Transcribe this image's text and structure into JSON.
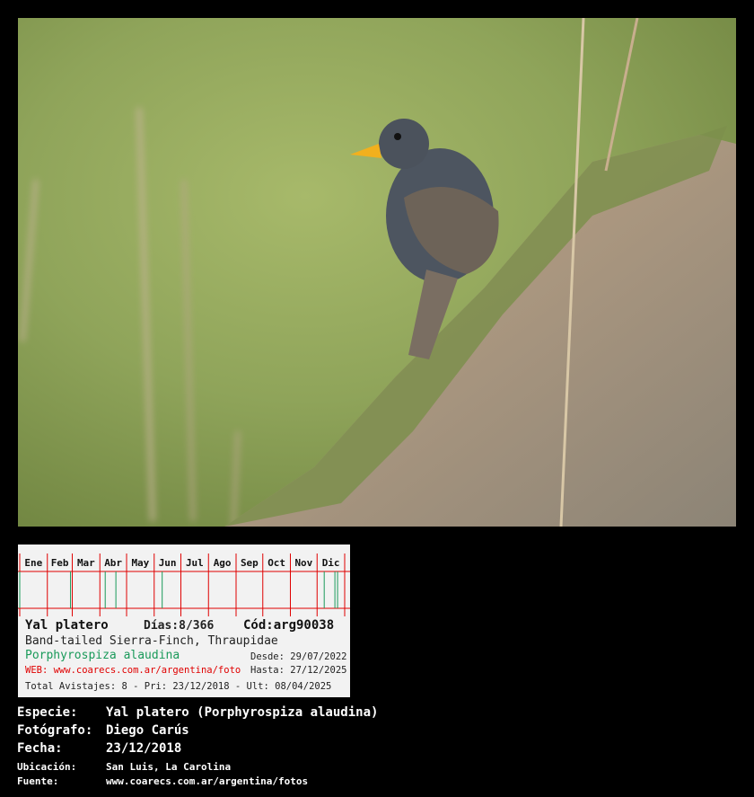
{
  "photo": {
    "subject": "Yal platero",
    "alt_icon": "bird-photo"
  },
  "calendar": {
    "months": [
      "Ene",
      "Feb",
      "Mar",
      "Abr",
      "May",
      "Jun",
      "Jul",
      "Ago",
      "Sep",
      "Oct",
      "Nov",
      "Dic"
    ],
    "sighting_days_of_year": [
      1,
      58,
      97,
      109,
      161,
      343,
      355,
      358
    ],
    "grid_color": "#e00000",
    "sighting_color": "#1a9a5a"
  },
  "card": {
    "common_name": "Yal platero",
    "code": "Cód:arg90038",
    "english_name": "Band-tailed Sierra-Finch, Thraupidae",
    "days": "Días:8/366",
    "scientific_name": "Porphyrospiza alaudina",
    "desde": "Desde: 29/07/2022",
    "web": "WEB: www.coarecs.com.ar/argentina/foto",
    "hasta": "Hasta: 27/12/2025",
    "totals": "Total Avistajes: 8 - Pri: 23/12/2018 - Ult: 08/04/2025"
  },
  "info": {
    "especie_label": "Especie:",
    "especie": "Yal platero (Porphyrospiza alaudina)",
    "fotografo_label": "Fotógrafo:",
    "fotografo": "Diego Carús",
    "fecha_label": "Fecha:",
    "fecha": "23/12/2018",
    "ubicacion_label": "Ubicación:",
    "ubicacion": "San Luis, La Carolina",
    "fuente_label": "Fuente:",
    "fuente": "www.coarecs.com.ar/argentina/fotos"
  }
}
